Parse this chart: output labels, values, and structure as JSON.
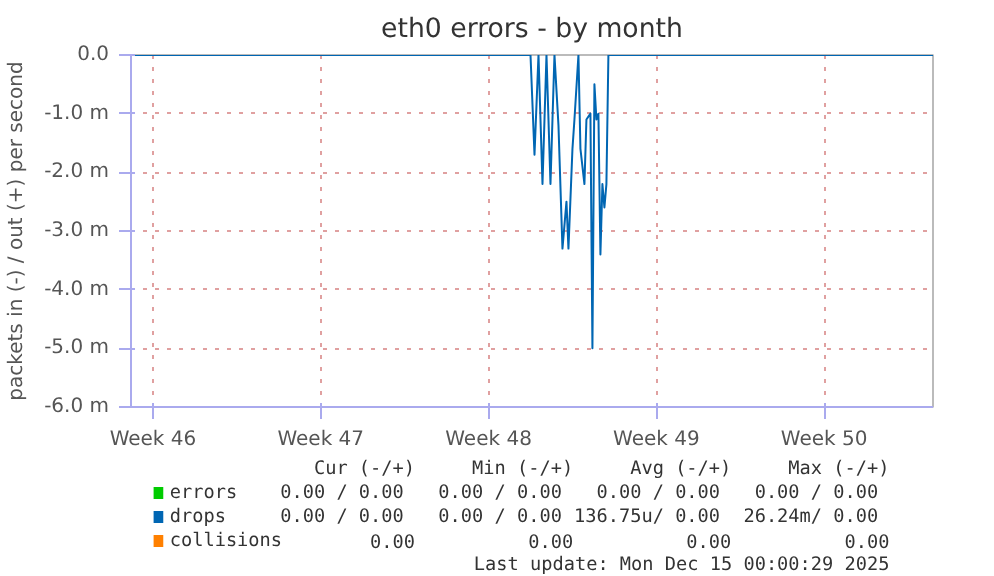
{
  "chart_data": {
    "type": "line",
    "title": "eth0 errors - by month",
    "ylabel": "packets in (-) / out (+) per second",
    "xlim": [
      "2025-11-09T02:00",
      "2025-12-12T13:00"
    ],
    "xticks": [
      {
        "value": "2025-11-10",
        "label": "Week 46"
      },
      {
        "value": "2025-11-17",
        "label": "Week 47"
      },
      {
        "value": "2025-11-24",
        "label": "Week 48"
      },
      {
        "value": "2025-12-01",
        "label": "Week 49"
      },
      {
        "value": "2025-12-08",
        "label": "Week 50"
      }
    ],
    "ylim": [
      -6,
      0
    ],
    "yticks": [
      {
        "value": 0,
        "label": "0.0"
      },
      {
        "value": -1,
        "label": "-1.0 m"
      },
      {
        "value": -2,
        "label": "-2.0 m"
      },
      {
        "value": -3,
        "label": "-3.0 m"
      },
      {
        "value": -4,
        "label": "-4.0 m"
      },
      {
        "value": -5,
        "label": "-5.0 m"
      },
      {
        "value": -6,
        "label": "-6.0 m"
      }
    ],
    "grid": true,
    "legend": "bottom",
    "line_style": "solid",
    "series": [
      {
        "name": "errors",
        "color": "#00cc00"
      },
      {
        "name": "drops",
        "color": "#0066b3",
        "x": [
          "2025-11-09T02:00",
          "2025-11-25T18:00",
          "2025-11-25T22:00",
          "2025-11-26T02:00",
          "2025-11-26T06:00",
          "2025-11-26T10:00",
          "2025-11-26T14:00",
          "2025-11-26T18:00",
          "2025-11-26T22:00",
          "2025-11-27T02:00",
          "2025-11-27T06:00",
          "2025-11-27T08:00",
          "2025-11-27T12:00",
          "2025-11-27T14:00",
          "2025-11-27T18:00",
          "2025-11-27T20:00",
          "2025-11-28T00:00",
          "2025-11-28T02:00",
          "2025-11-28T06:00",
          "2025-11-28T08:00",
          "2025-11-28T10:00",
          "2025-11-28T12:00",
          "2025-11-28T14:00",
          "2025-11-28T16:00",
          "2025-11-28T18:00",
          "2025-11-28T20:00",
          "2025-11-28T22:00",
          "2025-11-29T00:00",
          "2025-12-12T13:00"
        ],
        "values": [
          0,
          0,
          -1.7,
          0,
          -2.2,
          0,
          -2.2,
          0,
          -1.2,
          -3.3,
          -2.5,
          -3.3,
          -1.6,
          -1.1,
          0,
          -1.6,
          -2.2,
          -1.1,
          -1.0,
          -5.0,
          -0.5,
          -1.1,
          -1.0,
          -3.4,
          -2.2,
          -2.6,
          -2.2,
          0,
          0
        ]
      },
      {
        "name": "collisions",
        "color": "#ff8000"
      }
    ],
    "annotations": [
      "Cur (-/+)",
      "Min (-/+)",
      "Avg (-/+)",
      "Max (-/+)",
      "0.00 /  0.00",
      "0.00 /  0.00",
      "0.00 /  0.00",
      "0.00 /  0.00",
      "0.00 /  0.00",
      "0.00 /  0.00",
      "136.75u/  0.00",
      "26.24m/  0.00",
      "0.00",
      "0.00",
      "0.00",
      "0.00",
      "Last update: Mon Dec 15 00:00:29 2025"
    ]
  }
}
